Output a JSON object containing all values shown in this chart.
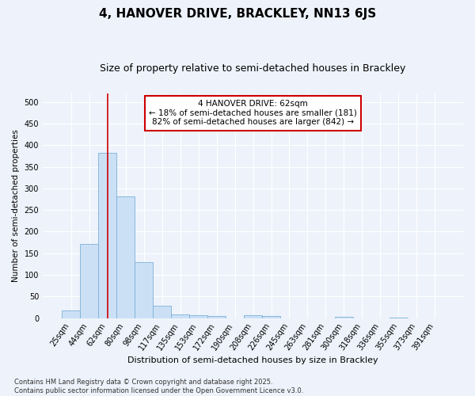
{
  "title": "4, HANOVER DRIVE, BRACKLEY, NN13 6JS",
  "subtitle": "Size of property relative to semi-detached houses in Brackley",
  "xlabel": "Distribution of semi-detached houses by size in Brackley",
  "ylabel": "Number of semi-detached properties",
  "categories": [
    "25sqm",
    "44sqm",
    "62sqm",
    "80sqm",
    "98sqm",
    "117sqm",
    "135sqm",
    "153sqm",
    "172sqm",
    "190sqm",
    "208sqm",
    "226sqm",
    "245sqm",
    "263sqm",
    "281sqm",
    "300sqm",
    "318sqm",
    "336sqm",
    "355sqm",
    "373sqm",
    "391sqm"
  ],
  "values": [
    18,
    172,
    383,
    281,
    130,
    28,
    8,
    7,
    5,
    0,
    7,
    5,
    0,
    0,
    0,
    3,
    0,
    0,
    2,
    0,
    0
  ],
  "bar_color": "#cce0f5",
  "bar_edge_color": "#7ab0d8",
  "vline_x_index": 2,
  "vline_color": "#cc0000",
  "annotation_text": "4 HANOVER DRIVE: 62sqm\n← 18% of semi-detached houses are smaller (181)\n82% of semi-detached houses are larger (842) →",
  "annotation_box_facecolor": "#ffffff",
  "annotation_box_edgecolor": "#cc0000",
  "ylim": [
    0,
    520
  ],
  "yticks": [
    0,
    50,
    100,
    150,
    200,
    250,
    300,
    350,
    400,
    450,
    500
  ],
  "background_color": "#eef3fb",
  "grid_color": "#ffffff",
  "footnote": "Contains HM Land Registry data © Crown copyright and database right 2025.\nContains public sector information licensed under the Open Government Licence v3.0.",
  "title_fontsize": 11,
  "subtitle_fontsize": 9,
  "xlabel_fontsize": 8,
  "ylabel_fontsize": 7.5,
  "tick_fontsize": 7,
  "annotation_fontsize": 7.5,
  "footnote_fontsize": 6
}
